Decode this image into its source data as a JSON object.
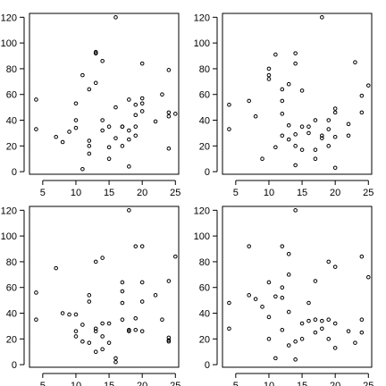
{
  "chart_data": [
    {
      "type": "scatter",
      "title": "",
      "xlabel": "",
      "ylabel": "",
      "xlim": [
        3,
        25.5
      ],
      "ylim": [
        -2,
        123
      ],
      "xticks": [
        5,
        10,
        15,
        20,
        25
      ],
      "yticks": [
        0,
        20,
        40,
        60,
        80,
        100,
        120
      ],
      "x": [
        4,
        4,
        7,
        8,
        9,
        10,
        10,
        10,
        11,
        11,
        12,
        12,
        12,
        12,
        13,
        13,
        13,
        13,
        14,
        14,
        14,
        15,
        15,
        15,
        16,
        16,
        16,
        17,
        17,
        17,
        18,
        18,
        18,
        18,
        19,
        19,
        19,
        19,
        20,
        20,
        20,
        20,
        22,
        23,
        24,
        24,
        24,
        24,
        25
      ],
      "y": [
        56,
        33,
        27,
        23,
        31,
        34,
        40,
        53,
        2,
        75,
        14,
        20,
        24,
        64,
        92,
        92,
        93,
        69,
        86,
        40,
        32,
        10,
        19,
        35,
        50,
        120,
        26,
        20,
        35,
        35,
        56,
        4,
        25,
        32,
        44,
        28,
        35,
        52,
        47,
        53,
        84,
        57,
        39,
        60,
        43,
        46,
        79,
        18,
        45
      ]
    },
    {
      "type": "scatter",
      "title": "",
      "xlabel": "",
      "ylabel": "",
      "xlim": [
        3,
        25.5
      ],
      "ylim": [
        -2,
        123
      ],
      "xticks": [
        5,
        10,
        15,
        20,
        25
      ],
      "yticks": [
        0,
        20,
        40,
        60,
        80,
        100,
        120
      ],
      "x": [
        4,
        4,
        7,
        8,
        9,
        10,
        10,
        10,
        11,
        11,
        12,
        12,
        12,
        12,
        13,
        13,
        13,
        14,
        14,
        14,
        14,
        14,
        15,
        15,
        15,
        16,
        16,
        17,
        17,
        17,
        18,
        18,
        18,
        19,
        19,
        19,
        20,
        20,
        20,
        20,
        22,
        22,
        23,
        24,
        24,
        25
      ],
      "y": [
        52,
        33,
        55,
        43,
        10,
        80,
        75,
        72,
        91,
        19,
        64,
        55,
        45,
        28,
        68,
        25,
        36,
        92,
        84,
        29,
        20,
        5,
        63,
        17,
        35,
        35,
        30,
        17,
        10,
        40,
        120,
        26,
        28,
        40,
        33,
        20,
        49,
        46,
        27,
        3,
        37,
        28,
        85,
        59,
        46,
        67
      ]
    },
    {
      "type": "scatter",
      "title": "",
      "xlabel": "",
      "ylabel": "",
      "xlim": [
        3,
        25.5
      ],
      "ylim": [
        -2,
        123
      ],
      "xticks": [
        5,
        10,
        15,
        20,
        25
      ],
      "yticks": [
        0,
        20,
        40,
        60,
        80,
        100,
        120
      ],
      "x": [
        4,
        4,
        7,
        8,
        9,
        10,
        10,
        10,
        11,
        11,
        12,
        12,
        12,
        13,
        13,
        13,
        13,
        14,
        14,
        14,
        14,
        15,
        15,
        16,
        16,
        17,
        17,
        17,
        17,
        18,
        18,
        18,
        19,
        19,
        19,
        20,
        20,
        20,
        20,
        22,
        23,
        24,
        24,
        24,
        24,
        25
      ],
      "y": [
        56,
        35,
        75,
        40,
        39,
        26,
        39,
        22,
        31,
        18,
        54,
        49,
        17,
        80,
        28,
        10,
        26,
        83,
        32,
        22,
        12,
        17,
        32,
        5,
        2,
        64,
        57,
        48,
        35,
        120,
        27,
        26,
        92,
        36,
        27,
        92,
        64,
        49,
        26,
        54,
        35,
        65,
        21,
        19,
        18,
        84
      ]
    },
    {
      "type": "scatter",
      "title": "",
      "xlabel": "",
      "ylabel": "",
      "xlim": [
        3,
        25.5
      ],
      "ylim": [
        -2,
        123
      ],
      "xticks": [
        5,
        10,
        15,
        20,
        25
      ],
      "yticks": [
        0,
        20,
        40,
        60,
        80,
        100,
        120
      ],
      "x": [
        4,
        4,
        7,
        7,
        8,
        9,
        10,
        10,
        10,
        11,
        11,
        12,
        12,
        12,
        12,
        13,
        13,
        13,
        13,
        14,
        14,
        14,
        15,
        15,
        16,
        16,
        17,
        17,
        17,
        18,
        18,
        19,
        19,
        19,
        20,
        20,
        20,
        22,
        23,
        24,
        24,
        24,
        25
      ],
      "y": [
        48,
        28,
        92,
        54,
        51,
        45,
        64,
        37,
        20,
        53,
        5,
        92,
        60,
        52,
        27,
        86,
        70,
        41,
        15,
        120,
        18,
        4,
        32,
        20,
        48,
        34,
        35,
        25,
        65,
        34,
        28,
        80,
        35,
        20,
        76,
        32,
        13,
        26,
        17,
        84,
        35,
        25,
        68
      ]
    }
  ]
}
